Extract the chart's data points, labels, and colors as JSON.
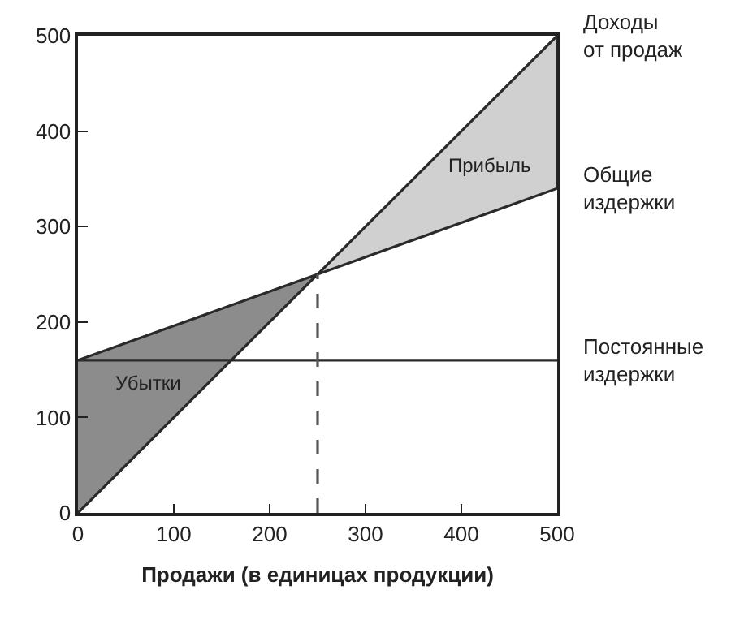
{
  "chart_data": {
    "type": "line",
    "xlabel": "Продажи (в единицах продукции)",
    "xlim": [
      0,
      500
    ],
    "xticks": [
      0,
      100,
      200,
      300,
      400,
      500
    ],
    "ylim": [
      0,
      500
    ],
    "yticks": [
      0,
      100,
      200,
      300,
      400,
      500
    ],
    "grid": false,
    "legend": false,
    "marker": "none",
    "series": [
      {
        "type": "area",
        "name": "Убытки",
        "color": "#8c8c8c",
        "x": [
          0,
          250,
          0
        ],
        "values": [
          160,
          250,
          0
        ]
      },
      {
        "type": "area",
        "name": "Прибыль",
        "color": "#d0d0d0",
        "x": [
          250,
          500,
          500
        ],
        "values": [
          250,
          500,
          340
        ]
      },
      {
        "name": "Доходы от продаж",
        "color": "#2a2a2a",
        "x": [
          0,
          500
        ],
        "values": [
          0,
          500
        ]
      },
      {
        "name": "Общие издержки",
        "color": "#2a2a2a",
        "x": [
          0,
          500
        ],
        "values": [
          160,
          340
        ]
      },
      {
        "name": "Постоянные издержки",
        "color": "#2a2a2a",
        "x": [
          0,
          500
        ],
        "values": [
          160,
          160
        ]
      },
      {
        "color": "#555555",
        "x": [
          250,
          250
        ],
        "values": [
          0,
          250
        ],
        "line_style": "dashed"
      }
    ]
  }
}
